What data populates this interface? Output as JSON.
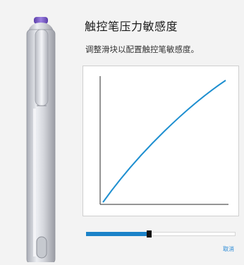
{
  "header": {
    "title": "触控笔压力敏感度"
  },
  "instructions": {
    "text": "调整滑块以配置触控笔敏感度。"
  },
  "sensitivity": {
    "level": 0.42
  },
  "actions": {
    "cancel_label": "取消"
  },
  "colors": {
    "accent": "#1b82c8",
    "pen_cap": "#7a5cc8",
    "thumb": "#111111"
  }
}
